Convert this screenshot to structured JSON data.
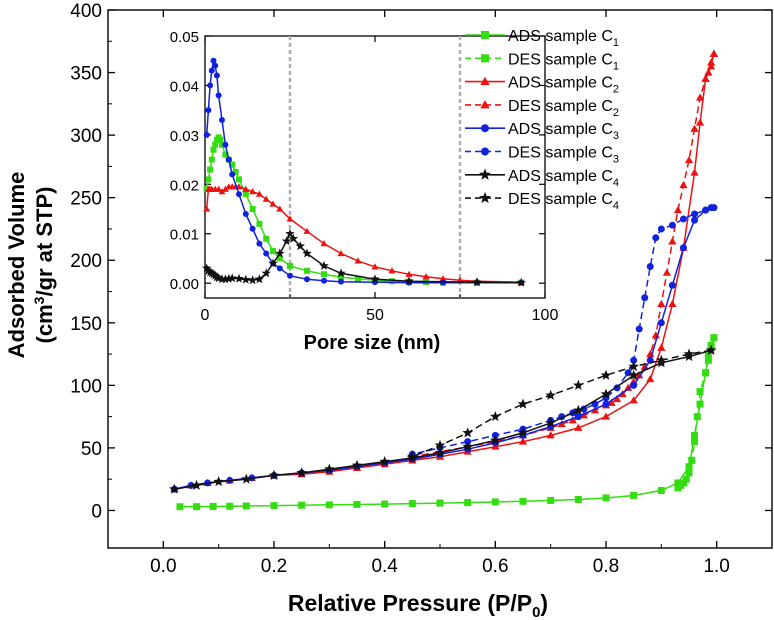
{
  "chart_data": [
    {
      "type": "line",
      "role": "main",
      "xlabel": "Relative Pressure (P/P",
      "xlabel_sub": "0",
      "xlabel_tail": ")",
      "ylabel_line1": "Adsorbed Volume",
      "ylabel_line2_pre": "(cm",
      "ylabel_line2_sup": "3",
      "ylabel_line2_post": "/gr at STP)",
      "xlim": [
        -0.1,
        1.1
      ],
      "ylim": [
        -30,
        400
      ],
      "x_ticks": [
        "0.0",
        "0.2",
        "0.4",
        "0.6",
        "0.8",
        "1.0"
      ],
      "y_ticks": [
        "0",
        "50",
        "100",
        "150",
        "200",
        "250",
        "300",
        "350",
        "400"
      ],
      "series": [
        {
          "name": "ADS sample C",
          "sub": "1",
          "color": "#33dd11",
          "marker": "square",
          "dash": false,
          "x": [
            0.03,
            0.06,
            0.09,
            0.12,
            0.15,
            0.2,
            0.25,
            0.3,
            0.35,
            0.4,
            0.45,
            0.5,
            0.55,
            0.6,
            0.65,
            0.7,
            0.75,
            0.8,
            0.85,
            0.9,
            0.93,
            0.95,
            0.96,
            0.97,
            0.98,
            0.985,
            0.99,
            0.995
          ],
          "y": [
            3,
            3,
            3.2,
            3.4,
            3.6,
            3.9,
            4.2,
            4.5,
            4.8,
            5.1,
            5.5,
            5.9,
            6.3,
            6.8,
            7.3,
            8.0,
            8.8,
            10,
            12,
            16,
            22,
            35,
            60,
            85,
            110,
            125,
            132,
            138
          ]
        },
        {
          "name": "DES sample C",
          "sub": "1",
          "color": "#33dd11",
          "marker": "square",
          "dash": true,
          "x": [
            0.995,
            0.99,
            0.985,
            0.98,
            0.97,
            0.965,
            0.96,
            0.955,
            0.95,
            0.945,
            0.94,
            0.935,
            0.93
          ],
          "y": [
            138,
            130,
            120,
            110,
            95,
            75,
            55,
            40,
            30,
            25,
            22,
            20,
            18
          ]
        },
        {
          "name": "ADS sample C",
          "sub": "2",
          "color": "#ee1111",
          "marker": "triangle",
          "dash": false,
          "x": [
            0.02,
            0.05,
            0.08,
            0.12,
            0.16,
            0.2,
            0.25,
            0.3,
            0.35,
            0.4,
            0.45,
            0.5,
            0.55,
            0.6,
            0.65,
            0.7,
            0.75,
            0.8,
            0.85,
            0.88,
            0.9,
            0.92,
            0.94,
            0.96,
            0.97,
            0.98,
            0.99,
            0.995
          ],
          "y": [
            17,
            20,
            22,
            24,
            26,
            28,
            29,
            31,
            34,
            37,
            40,
            43,
            47,
            51,
            55,
            60,
            66,
            75,
            88,
            105,
            130,
            165,
            210,
            270,
            310,
            345,
            358,
            365
          ]
        },
        {
          "name": "DES sample C",
          "sub": "2",
          "color": "#ee1111",
          "marker": "triangle",
          "dash": true,
          "x": [
            0.995,
            0.99,
            0.985,
            0.98,
            0.97,
            0.96,
            0.95,
            0.94,
            0.93,
            0.92,
            0.91,
            0.9,
            0.89,
            0.88,
            0.87,
            0.86,
            0.85,
            0.84,
            0.83,
            0.82,
            0.81,
            0.8,
            0.78,
            0.76,
            0.74,
            0.72,
            0.7,
            0.65,
            0.6,
            0.55,
            0.5,
            0.45
          ],
          "y": [
            365,
            355,
            350,
            345,
            330,
            305,
            280,
            260,
            240,
            215,
            190,
            165,
            140,
            125,
            115,
            108,
            103,
            98,
            93,
            89,
            86,
            84,
            80,
            76,
            72,
            69,
            66,
            60,
            55,
            51,
            47,
            43
          ]
        },
        {
          "name": "ADS sample C",
          "sub": "3",
          "color": "#1122dd",
          "marker": "circle",
          "dash": false,
          "x": [
            0.02,
            0.05,
            0.08,
            0.12,
            0.16,
            0.2,
            0.25,
            0.3,
            0.35,
            0.4,
            0.45,
            0.5,
            0.55,
            0.6,
            0.65,
            0.7,
            0.75,
            0.8,
            0.85,
            0.88,
            0.9,
            0.92,
            0.94,
            0.96,
            0.98,
            0.99,
            0.995
          ],
          "y": [
            17,
            20,
            22,
            24,
            26,
            28,
            30,
            32,
            35,
            38,
            41,
            45,
            49,
            54,
            60,
            67,
            75,
            85,
            100,
            120,
            150,
            180,
            210,
            232,
            240,
            242,
            242
          ]
        },
        {
          "name": "DES sample C",
          "sub": "3",
          "color": "#1122dd",
          "marker": "circle",
          "dash": true,
          "x": [
            0.995,
            0.98,
            0.96,
            0.94,
            0.92,
            0.9,
            0.89,
            0.88,
            0.87,
            0.86,
            0.85,
            0.84,
            0.82,
            0.8,
            0.78,
            0.76,
            0.74,
            0.72,
            0.7,
            0.65,
            0.6,
            0.55,
            0.5,
            0.45
          ],
          "y": [
            242,
            240,
            237,
            233,
            228,
            225,
            218,
            195,
            170,
            145,
            120,
            110,
            98,
            90,
            85,
            81,
            78,
            75,
            72,
            65,
            60,
            55,
            50,
            45
          ]
        },
        {
          "name": "ADS sample C",
          "sub": "4",
          "color": "#111111",
          "marker": "star",
          "dash": false,
          "x": [
            0.02,
            0.06,
            0.1,
            0.15,
            0.2,
            0.25,
            0.3,
            0.35,
            0.4,
            0.45,
            0.5,
            0.55,
            0.6,
            0.65,
            0.7,
            0.75,
            0.8,
            0.85,
            0.9,
            0.95,
            0.99
          ],
          "y": [
            17,
            20,
            23,
            25,
            28,
            30,
            33,
            36,
            39,
            42,
            46,
            51,
            56,
            62,
            70,
            80,
            93,
            108,
            118,
            123,
            128
          ]
        },
        {
          "name": "DES sample C",
          "sub": "4",
          "color": "#111111",
          "marker": "star",
          "dash": true,
          "x": [
            0.99,
            0.95,
            0.9,
            0.85,
            0.8,
            0.75,
            0.7,
            0.65,
            0.6,
            0.55,
            0.5,
            0.45
          ],
          "y": [
            128,
            125,
            120,
            115,
            108,
            100,
            92,
            85,
            75,
            62,
            52,
            43
          ]
        }
      ]
    },
    {
      "type": "line",
      "role": "inset",
      "xlabel": "Pore size (nm)",
      "ylabel": "",
      "xlim": [
        0,
        100
      ],
      "ylim": [
        -0.003,
        0.05
      ],
      "x_ticks": [
        "0",
        "50",
        "100"
      ],
      "y_ticks": [
        "0.00",
        "0.01",
        "0.02",
        "0.03",
        "0.04",
        "0.05"
      ],
      "reference_lines_x": [
        25,
        75
      ],
      "series": [
        {
          "name": "C1",
          "color": "#33dd11",
          "marker": "square",
          "x": [
            0.5,
            1,
            1.5,
            2,
            2.5,
            3,
            3.5,
            4,
            4.5,
            5,
            6,
            7,
            8,
            9,
            10,
            12,
            14,
            16,
            18,
            20,
            22,
            25,
            30,
            35,
            40,
            45,
            50,
            55,
            60,
            65,
            70,
            80,
            93
          ],
          "y": [
            0.019,
            0.021,
            0.023,
            0.025,
            0.027,
            0.028,
            0.029,
            0.0295,
            0.029,
            0.028,
            0.026,
            0.025,
            0.024,
            0.0225,
            0.021,
            0.018,
            0.015,
            0.012,
            0.009,
            0.0065,
            0.005,
            0.0035,
            0.0025,
            0.0018,
            0.0012,
            0.0009,
            0.0006,
            0.0004,
            0.0003,
            0.0002,
            0.0001,
            0.0001,
            0.0001
          ]
        },
        {
          "name": "C2",
          "color": "#ee1111",
          "marker": "triangle",
          "x": [
            0.5,
            1,
            1.5,
            2,
            3,
            4,
            5,
            6,
            7,
            8,
            9,
            10,
            12,
            14,
            16,
            18,
            20,
            22,
            25,
            30,
            35,
            40,
            45,
            50,
            55,
            60,
            65,
            70,
            75,
            80,
            93
          ],
          "y": [
            0.015,
            0.019,
            0.019,
            0.019,
            0.019,
            0.019,
            0.0185,
            0.019,
            0.0195,
            0.0195,
            0.0195,
            0.0195,
            0.019,
            0.0185,
            0.018,
            0.017,
            0.016,
            0.015,
            0.013,
            0.0105,
            0.008,
            0.006,
            0.0045,
            0.0033,
            0.0025,
            0.0018,
            0.0013,
            0.0009,
            0.0006,
            0.0004,
            0.0002
          ]
        },
        {
          "name": "C3",
          "color": "#1122dd",
          "marker": "circle",
          "x": [
            0.5,
            1,
            1.5,
            2,
            2.5,
            3,
            3.5,
            4,
            5,
            6,
            7,
            8,
            10,
            12,
            14,
            16,
            18,
            20,
            22,
            25,
            30,
            35,
            40,
            50,
            60,
            70,
            80,
            93
          ],
          "y": [
            0.03,
            0.035,
            0.04,
            0.043,
            0.045,
            0.044,
            0.042,
            0.038,
            0.033,
            0.028,
            0.025,
            0.022,
            0.018,
            0.014,
            0.011,
            0.008,
            0.006,
            0.004,
            0.003,
            0.0015,
            0.0008,
            0.0005,
            0.0003,
            0.0002,
            0.0001,
            0.0001,
            0.0001,
            0.0001
          ]
        },
        {
          "name": "C4",
          "color": "#111111",
          "marker": "star",
          "x": [
            0.5,
            1,
            1.5,
            2,
            2.5,
            3,
            3.5,
            4,
            5,
            6,
            7,
            8,
            10,
            12,
            14,
            16,
            18,
            20,
            22,
            24,
            25,
            26,
            28,
            30,
            35,
            40,
            50,
            60,
            80,
            93
          ],
          "y": [
            0.003,
            0.0025,
            0.0022,
            0.002,
            0.0018,
            0.0015,
            0.0012,
            0.001,
            0.0008,
            0.0008,
            0.0009,
            0.001,
            0.0009,
            0.0007,
            0.0006,
            0.0008,
            0.002,
            0.004,
            0.006,
            0.0085,
            0.01,
            0.009,
            0.0075,
            0.006,
            0.0035,
            0.002,
            0.0008,
            0.0004,
            0.0002,
            0.0001
          ]
        }
      ]
    }
  ]
}
